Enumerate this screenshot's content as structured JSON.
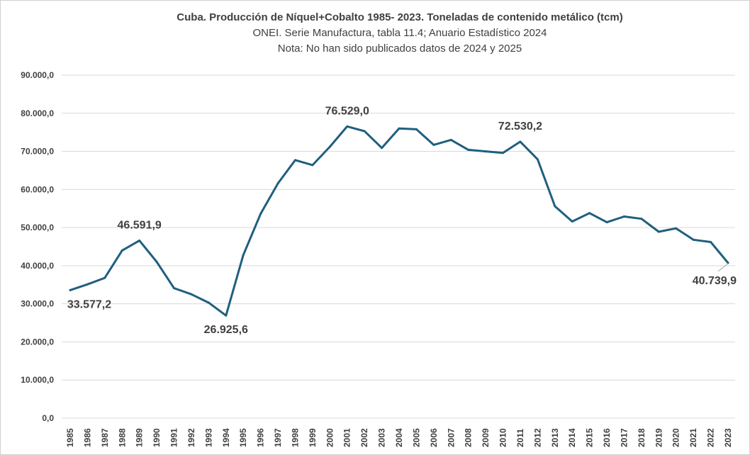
{
  "chart_data": {
    "type": "line",
    "title": "Cuba. Producción de Níquel+Cobalto 1985- 2023. Toneladas de contenido metálico (tcm)",
    "subtitle_1": "ONEI. Serie Manufactura, tabla 11.4; Anuario Estadístico 2024",
    "subtitle_2": "Nota: No han sido publicados datos de 2024 y 2025",
    "xlabel": "",
    "ylabel": "",
    "ylim": [
      0,
      90000
    ],
    "yticks": [
      0,
      10000,
      20000,
      30000,
      40000,
      50000,
      60000,
      70000,
      80000,
      90000
    ],
    "ytick_labels": [
      "0,0",
      "10.000,0",
      "20.000,0",
      "30.000,0",
      "40.000,0",
      "50.000,0",
      "60.000,0",
      "70.000,0",
      "80.000,0",
      "90.000,0"
    ],
    "grid": true,
    "line_color": "#1f5f7f",
    "categories": [
      "1985",
      "1986",
      "1987",
      "1988",
      "1989",
      "1990",
      "1991",
      "1992",
      "1993",
      "1994",
      "1995",
      "1996",
      "1997",
      "1998",
      "1999",
      "2000",
      "2001",
      "2002",
      "2003",
      "2004",
      "2005",
      "2006",
      "2007",
      "2008",
      "2009",
      "2010",
      "2011",
      "2012",
      "2013",
      "2014",
      "2015",
      "2016",
      "2017",
      "2018",
      "2019",
      "2020",
      "2021",
      "2022",
      "2023"
    ],
    "values": [
      33577.2,
      35100,
      36800,
      44000,
      46591.9,
      41000,
      34100,
      32500,
      30300,
      26925.6,
      42800,
      53600,
      61600,
      67700,
      66400,
      71200,
      76529.0,
      75300,
      70900,
      76000,
      75800,
      71700,
      73000,
      70400,
      70000,
      69600,
      72530.2,
      67900,
      55600,
      51600,
      53800,
      51400,
      52900,
      52300,
      48900,
      49800,
      46800,
      46200,
      40739.9
    ],
    "data_labels": [
      {
        "index": 0,
        "text": "33.577,2",
        "pos": "below"
      },
      {
        "index": 4,
        "text": "46.591,9",
        "pos": "above"
      },
      {
        "index": 9,
        "text": "26.925,6",
        "pos": "below"
      },
      {
        "index": 16,
        "text": "76.529,0",
        "pos": "above"
      },
      {
        "index": 26,
        "text": "72.530,2",
        "pos": "above"
      },
      {
        "index": 38,
        "text": "40.739,9",
        "pos": "below-left"
      }
    ]
  }
}
